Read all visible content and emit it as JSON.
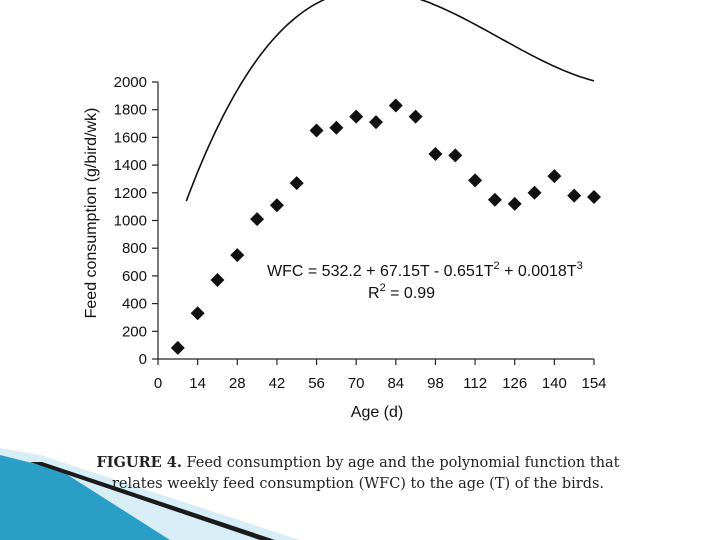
{
  "chart_data": {
    "type": "scatter",
    "xlabel": "Age (d)",
    "ylabel": "Feed consumption (g/bird/wk)",
    "xlim": [
      0,
      154
    ],
    "ylim": [
      0,
      2000
    ],
    "xticks": [
      0,
      14,
      28,
      42,
      56,
      70,
      84,
      98,
      112,
      126,
      140,
      154
    ],
    "yticks": [
      0,
      200,
      400,
      600,
      800,
      1000,
      1200,
      1400,
      1600,
      1800,
      2000
    ],
    "series": [
      {
        "marker": "diamond",
        "color": "#111111",
        "x": [
          7,
          14,
          21,
          28,
          35,
          42,
          49,
          56,
          63,
          70,
          77,
          84,
          91,
          98,
          105,
          112,
          119,
          126,
          133,
          140,
          147,
          154
        ],
        "y": [
          80,
          330,
          570,
          750,
          1010,
          1110,
          1270,
          1650,
          1670,
          1750,
          1710,
          1830,
          1750,
          1480,
          1470,
          1290,
          1150,
          1120,
          1200,
          1320,
          1180,
          1170
        ]
      }
    ],
    "fit_curve": {
      "intercept": 532.2,
      "b1": 67.15,
      "b2": -0.651,
      "b3": 0.0018,
      "x_start": 10,
      "x_end": 154
    },
    "annotation": {
      "equation_prefix": "WFC = 532.2 + 67.15T - 0.651T",
      "equation_mid": " + 0.0018T",
      "sup2": "2",
      "sup3": "3",
      "r2_prefix": "R",
      "r2_sup": "2",
      "r2_suffix": " = 0.99"
    }
  },
  "caption": {
    "label": "FIGURE 4.",
    "text": " Feed consumption by age and the polynomial function that relates weekly feed consumption (WFC) to the age (T) of the birds."
  },
  "colors": {
    "axis": "#222222",
    "curve": "#111111",
    "decor_teal": "#2a9ec6",
    "decor_light": "#bfe3f0"
  }
}
